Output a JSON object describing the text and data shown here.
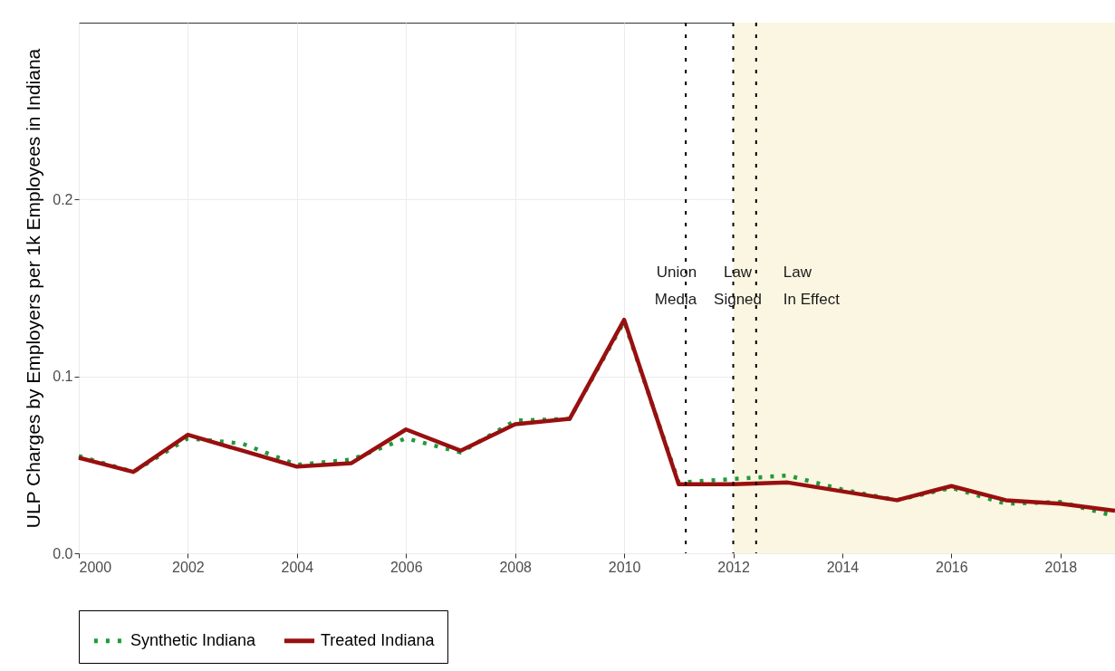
{
  "chart_data": {
    "type": "line",
    "ylabel": "ULP Charges by Employers per 1k Employees in Indiana",
    "x": [
      2000,
      2001,
      2002,
      2003,
      2004,
      2005,
      2006,
      2007,
      2008,
      2009,
      2010,
      2011,
      2012,
      2013,
      2014,
      2015,
      2016,
      2017,
      2018,
      2019
    ],
    "series": [
      {
        "name": "Synthetic Indiana",
        "color": "#1f9a3a",
        "line_style": "dotted",
        "values": [
          0.055,
          0.046,
          0.065,
          0.062,
          0.05,
          0.053,
          0.065,
          0.057,
          0.075,
          0.076,
          0.131,
          0.04,
          0.042,
          0.044,
          0.036,
          0.03,
          0.037,
          0.028,
          0.029,
          0.021
        ]
      },
      {
        "name": "Treated Indiana",
        "color": "#990f0f",
        "line_style": "solid",
        "values": [
          0.054,
          0.046,
          0.067,
          0.058,
          0.049,
          0.051,
          0.07,
          0.058,
          0.073,
          0.076,
          0.132,
          0.039,
          0.039,
          0.04,
          0.035,
          0.03,
          0.038,
          0.03,
          0.028,
          0.024
        ]
      }
    ],
    "xlim": [
      2000,
      2019
    ],
    "xticks": [
      2000,
      2002,
      2004,
      2006,
      2008,
      2010,
      2012,
      2014,
      2016,
      2018
    ],
    "ylim": [
      0,
      0.3
    ],
    "yticks": [
      {
        "value": 0,
        "label": "0.0"
      },
      0.1,
      0.2
    ],
    "ref_lines": [
      {
        "axis": "x",
        "value": 2011.13,
        "line_style": "dotted",
        "color": "#000000",
        "label": "Union\nMedia"
      },
      {
        "axis": "x",
        "value": 2012,
        "line_style": "dotted",
        "color": "#000000",
        "label": "Law\nSigned"
      },
      {
        "axis": "x",
        "value": 2012.42,
        "line_style": "dotted",
        "color": "#000000",
        "label": "Law\nIn Effect"
      }
    ],
    "bands": [
      {
        "axis": "x",
        "from": 2012,
        "to": 2019,
        "color": "#faf6e1"
      }
    ],
    "grid": true,
    "legend": "bottom"
  }
}
